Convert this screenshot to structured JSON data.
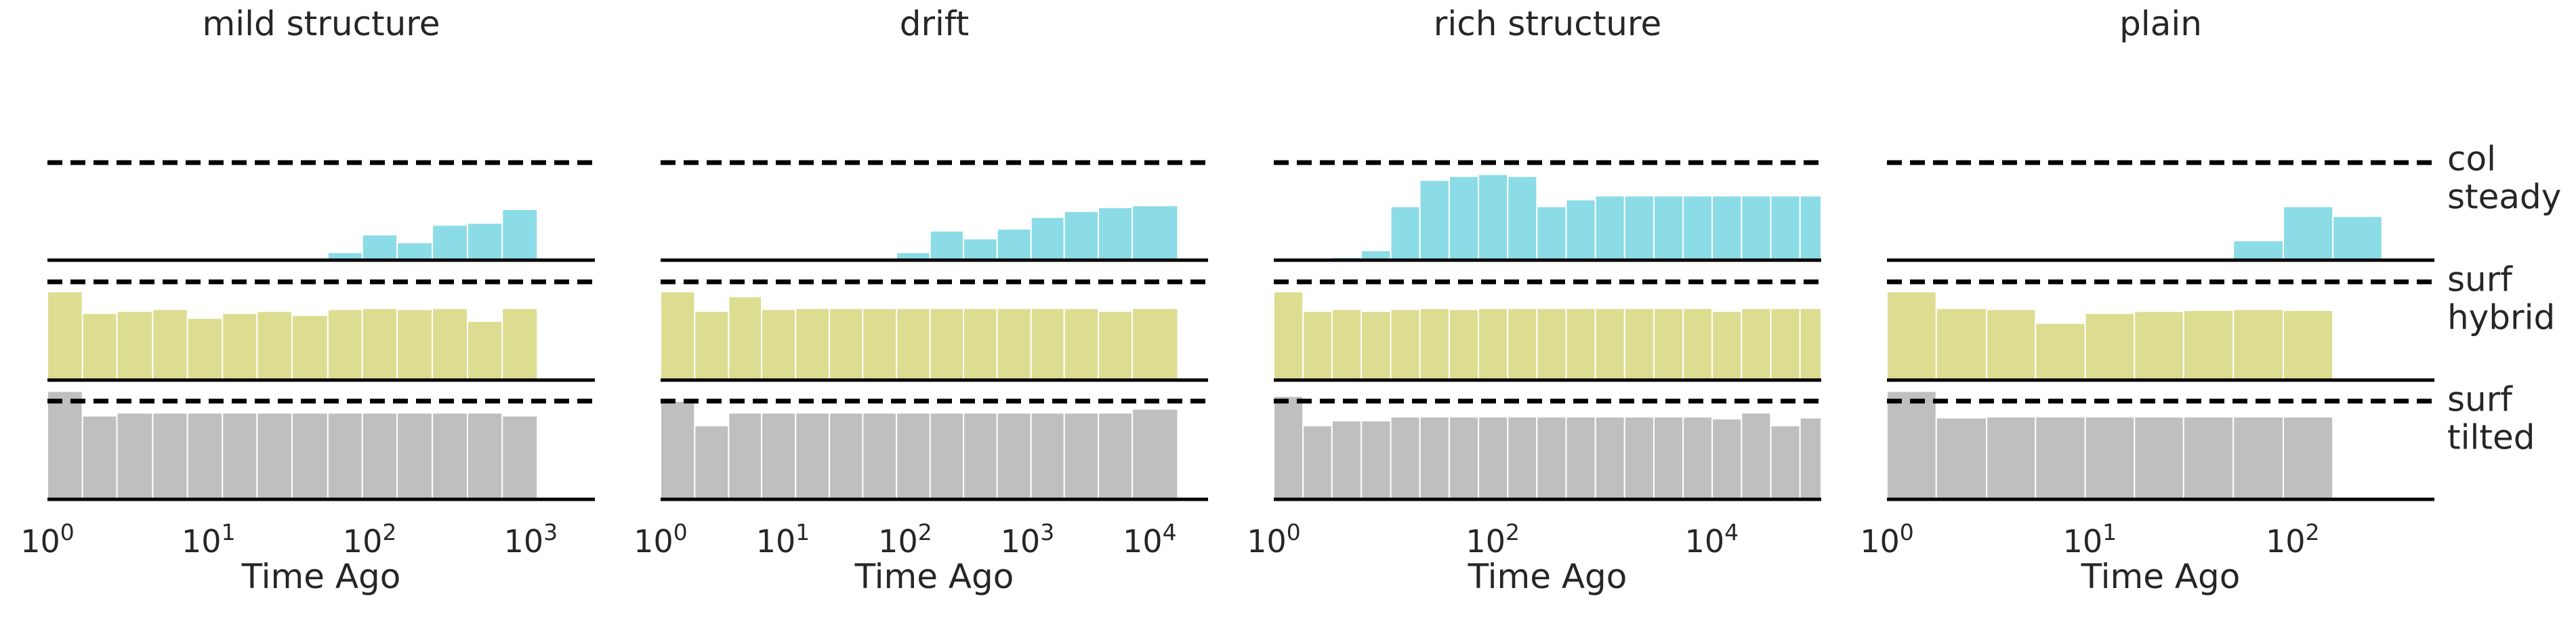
{
  "chart_data": {
    "type": "histogram",
    "xscale": "log",
    "tracks": [
      {
        "name": "col",
        "colors": {
          "fill": "#8bdce7"
        },
        "label_lines": [
          "col",
          "steady"
        ]
      },
      {
        "name": "surf",
        "colors": {
          "fill": "#dcdd90"
        },
        "label_lines": [
          "surf",
          "hybrid"
        ]
      },
      {
        "name": "surf",
        "colors": {
          "fill": "#bfbfbf"
        },
        "label_lines": [
          "surf",
          "tilted"
        ]
      }
    ],
    "panels": [
      {
        "title": "mild structure",
        "xlabel": "Time Ago",
        "xlim": [
          1,
          2500
        ],
        "xticks": [
          {
            "base": "10",
            "exp": "0",
            "value": 1
          },
          {
            "base": "10",
            "exp": "1",
            "value": 10
          },
          {
            "base": "10",
            "exp": "2",
            "value": 100
          },
          {
            "base": "10",
            "exp": "3",
            "value": 1000
          }
        ],
        "edges": [
          1,
          1.65,
          2.7,
          4.5,
          7.4,
          12.2,
          20,
          33,
          55,
          90,
          148,
          245,
          405,
          665,
          1100,
          1800
        ],
        "series": [
          [
            0,
            0,
            0,
            0,
            0,
            0,
            0,
            0.02,
            0.08,
            0.26,
            0.18,
            0.36,
            0.38,
            0.52,
            0
          ],
          [
            0.9,
            0.68,
            0.7,
            0.72,
            0.63,
            0.68,
            0.7,
            0.66,
            0.72,
            0.73,
            0.72,
            0.73,
            0.6,
            0.73,
            0
          ],
          [
            1.1,
            0.85,
            0.88,
            0.88,
            0.88,
            0.88,
            0.88,
            0.88,
            0.88,
            0.88,
            0.88,
            0.88,
            0.88,
            0.85,
            0
          ]
        ]
      },
      {
        "title": "drift",
        "xlabel": "Time Ago",
        "xlim": [
          1,
          30000
        ],
        "xticks": [
          {
            "base": "10",
            "exp": "0",
            "value": 1
          },
          {
            "base": "10",
            "exp": "1",
            "value": 10
          },
          {
            "base": "10",
            "exp": "2",
            "value": 100
          },
          {
            "base": "10",
            "exp": "3",
            "value": 1000
          },
          {
            "base": "10",
            "exp": "4",
            "value": 10000
          }
        ],
        "edges": [
          1,
          1.9,
          3.6,
          6.7,
          12.7,
          24,
          45,
          85,
          160,
          300,
          565,
          1070,
          2000,
          3800,
          7200,
          17000
        ],
        "series": [
          [
            0,
            0,
            0,
            0,
            0,
            0,
            0.02,
            0.08,
            0.3,
            0.22,
            0.32,
            0.44,
            0.5,
            0.54,
            0.56
          ],
          [
            0.9,
            0.7,
            0.85,
            0.72,
            0.73,
            0.73,
            0.73,
            0.73,
            0.73,
            0.73,
            0.73,
            0.73,
            0.73,
            0.7,
            0.73
          ],
          [
            1.0,
            0.75,
            0.88,
            0.88,
            0.88,
            0.88,
            0.88,
            0.88,
            0.88,
            0.88,
            0.88,
            0.88,
            0.88,
            0.88,
            0.92
          ]
        ]
      },
      {
        "title": "rich structure",
        "xlabel": "Time Ago",
        "xlim": [
          1,
          100000
        ],
        "xticks": [
          {
            "base": "10",
            "exp": "0",
            "value": 1
          },
          {
            "base": "10",
            "exp": "2",
            "value": 100
          },
          {
            "base": "10",
            "exp": "4",
            "value": 10000
          }
        ],
        "edges": [
          1,
          1.85,
          3.4,
          6.3,
          11.7,
          21.6,
          40,
          74,
          137,
          253,
          468,
          866,
          1600,
          2960,
          5480,
          10100,
          18700,
          34600,
          64000,
          100000
        ],
        "series": [
          [
            0,
            0,
            0.03,
            0.1,
            0.55,
            0.82,
            0.86,
            0.88,
            0.86,
            0.55,
            0.62,
            0.66,
            0.66,
            0.66,
            0.66,
            0.66,
            0.66,
            0.66,
            0.66
          ],
          [
            0.9,
            0.7,
            0.72,
            0.7,
            0.72,
            0.73,
            0.72,
            0.73,
            0.73,
            0.73,
            0.73,
            0.73,
            0.73,
            0.73,
            0.73,
            0.7,
            0.73,
            0.73,
            0.73
          ],
          [
            1.05,
            0.75,
            0.8,
            0.8,
            0.84,
            0.84,
            0.84,
            0.84,
            0.84,
            0.84,
            0.84,
            0.84,
            0.84,
            0.84,
            0.84,
            0.82,
            0.88,
            0.75,
            0.83
          ]
        ]
      },
      {
        "title": "plain",
        "xlabel": "Time Ago",
        "xlim": [
          1,
          500
        ],
        "xticks": [
          {
            "base": "10",
            "exp": "0",
            "value": 1
          },
          {
            "base": "10",
            "exp": "1",
            "value": 10
          },
          {
            "base": "10",
            "exp": "2",
            "value": 100
          }
        ],
        "edges": [
          1,
          1.75,
          3.1,
          5.4,
          9.5,
          16.6,
          29,
          51,
          90,
          158,
          276
        ],
        "series": [
          [
            0,
            0,
            0,
            0,
            0,
            0,
            0,
            0.2,
            0.55,
            0.45
          ],
          [
            0.9,
            0.73,
            0.72,
            0.58,
            0.68,
            0.7,
            0.71,
            0.72,
            0.71,
            0
          ],
          [
            1.1,
            0.83,
            0.84,
            0.84,
            0.84,
            0.84,
            0.84,
            0.84,
            0.84,
            0
          ]
        ]
      }
    ]
  }
}
